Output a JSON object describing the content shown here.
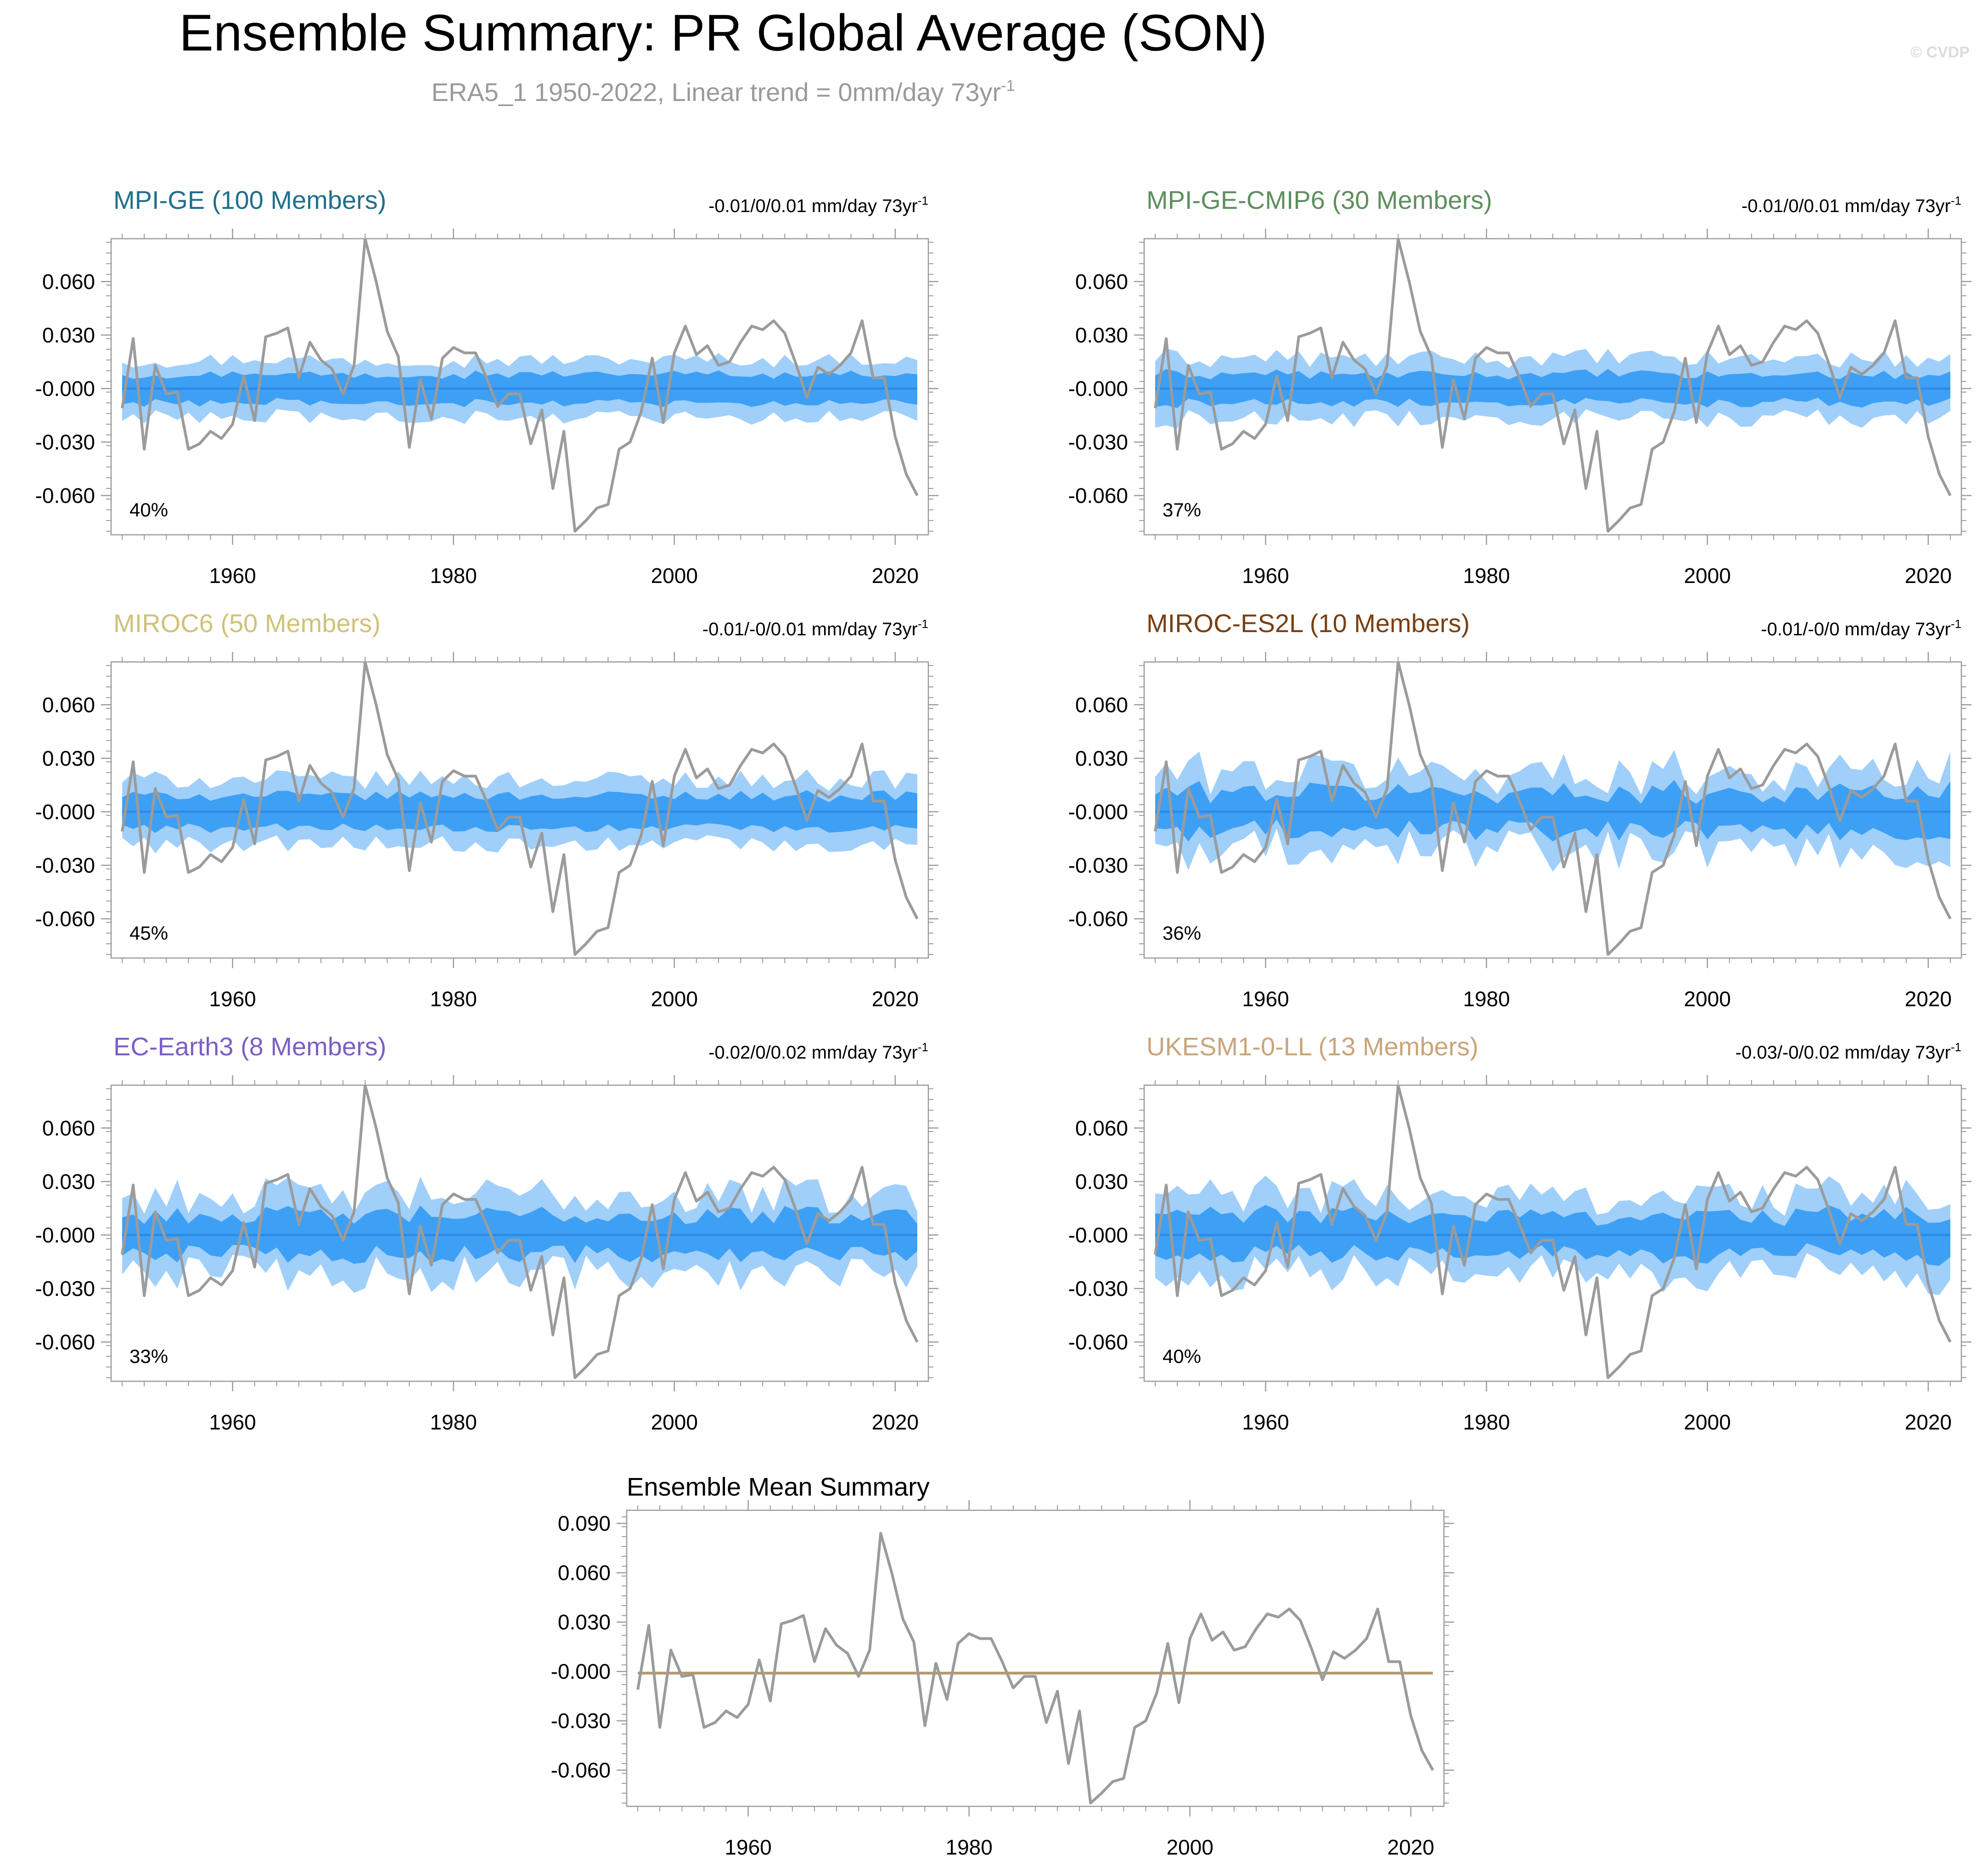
{
  "title": "Ensemble Summary: PR Global Average (SON)",
  "subtitle": "ERA5_1 1950-2022, Linear trend = 0mm/day 73yr",
  "subtitle_sup": "-1",
  "watermark": "© CVDP",
  "trend_units": "mm/day 73yr",
  "trend_sup": "-1",
  "colors": {
    "outer_band": "#a0cffa",
    "inner_band": "#3da0f5",
    "mean_line": "#2f8ae6",
    "obs_line": "#9b9b9b",
    "mean_summary_line": "#b49a6a"
  },
  "observed_series": [
    -0.011,
    0.028,
    -0.034,
    0.013,
    -0.003,
    -0.002,
    -0.034,
    -0.031,
    -0.024,
    -0.028,
    -0.02,
    0.007,
    -0.018,
    0.029,
    0.031,
    0.034,
    0.006,
    0.026,
    0.016,
    0.011,
    -0.003,
    0.013,
    0.084,
    0.06,
    0.032,
    0.018,
    -0.033,
    0.005,
    -0.017,
    0.017,
    0.023,
    0.02,
    0.02,
    0.006,
    -0.01,
    -0.003,
    -0.003,
    -0.031,
    -0.012,
    -0.056,
    -0.024,
    -0.08,
    -0.074,
    -0.067,
    -0.065,
    -0.034,
    -0.03,
    -0.013,
    0.017,
    -0.019,
    0.02,
    0.035,
    0.019,
    0.024,
    0.013,
    0.015,
    0.026,
    0.035,
    0.033,
    0.038,
    0.031,
    0.014,
    -0.005,
    0.012,
    0.008,
    0.013,
    0.02,
    0.038,
    0.006,
    0.006,
    -0.027,
    -0.048,
    -0.06
  ],
  "chart_data": [
    {
      "type": "area",
      "name": "MPI-GE (100 Members)",
      "title_color": "#1f6f8b",
      "trend_text": "-0.01/0/0.01",
      "percent_label": "40%",
      "x_range": [
        1950,
        2022
      ],
      "xlim": [
        1949,
        2023
      ],
      "ylim": [
        -0.082,
        0.084
      ],
      "xticks": [
        1960,
        1980,
        2000,
        2020
      ],
      "yticks": [
        0.06,
        0.03,
        0.0,
        -0.03,
        -0.06
      ],
      "ytick_labels": [
        "0.060",
        "0.030",
        "-0.000",
        "-0.030",
        "-0.060"
      ],
      "series": [
        {
          "name": "ensemble 10-90% range",
          "half_width": 0.016,
          "variability": 0.25
        },
        {
          "name": "ensemble 25-75% range",
          "half_width": 0.008,
          "variability": 0.25
        },
        {
          "name": "ensemble mean",
          "value": 0.0
        },
        {
          "name": "ERA5_1 observed",
          "values_ref": "observed_series"
        }
      ]
    },
    {
      "type": "area",
      "name": "MPI-GE-CMIP6 (30 Members)",
      "title_color": "#5e8f5e",
      "trend_text": "-0.01/0/0.01",
      "percent_label": "37%",
      "x_range": [
        1950,
        2022
      ],
      "xlim": [
        1949,
        2023
      ],
      "ylim": [
        -0.082,
        0.084
      ],
      "xticks": [
        1960,
        1980,
        2000,
        2020
      ],
      "yticks": [
        0.06,
        0.03,
        0.0,
        -0.03,
        -0.06
      ],
      "ytick_labels": [
        "0.060",
        "0.030",
        "-0.000",
        "-0.030",
        "-0.060"
      ],
      "series": [
        {
          "name": "ensemble 10-90% range",
          "half_width": 0.017,
          "variability": 0.3
        },
        {
          "name": "ensemble 25-75% range",
          "half_width": 0.008,
          "variability": 0.3
        },
        {
          "name": "ensemble mean",
          "value": 0.0
        },
        {
          "name": "ERA5_1 observed",
          "values_ref": "observed_series"
        }
      ]
    },
    {
      "type": "area",
      "name": "MIROC6 (50 Members)",
      "title_color": "#cfc27a",
      "trend_text": "-0.01/-0/0.01",
      "percent_label": "45%",
      "x_range": [
        1950,
        2022
      ],
      "xlim": [
        1949,
        2023
      ],
      "ylim": [
        -0.082,
        0.084
      ],
      "xticks": [
        1960,
        1980,
        2000,
        2020
      ],
      "yticks": [
        0.06,
        0.03,
        0.0,
        -0.03,
        -0.06
      ],
      "ytick_labels": [
        "0.060",
        "0.030",
        "-0.000",
        "-0.030",
        "-0.060"
      ],
      "series": [
        {
          "name": "ensemble 10-90% range",
          "half_width": 0.018,
          "variability": 0.3
        },
        {
          "name": "ensemble 25-75% range",
          "half_width": 0.009,
          "variability": 0.3
        },
        {
          "name": "ensemble mean",
          "value": 0.0
        },
        {
          "name": "ERA5_1 observed",
          "values_ref": "observed_series"
        }
      ]
    },
    {
      "type": "area",
      "name": "MIROC-ES2L (10 Members)",
      "title_color": "#7a3f12",
      "trend_text": "-0.01/-0/0",
      "percent_label": "36%",
      "x_range": [
        1950,
        2022
      ],
      "xlim": [
        1949,
        2023
      ],
      "ylim": [
        -0.082,
        0.084
      ],
      "xticks": [
        1960,
        1980,
        2000,
        2020
      ],
      "yticks": [
        0.06,
        0.03,
        0.0,
        -0.03,
        -0.06
      ],
      "ytick_labels": [
        "0.060",
        "0.030",
        "-0.000",
        "-0.030",
        "-0.060"
      ],
      "series": [
        {
          "name": "ensemble 10-90% range",
          "half_width": 0.022,
          "variability": 0.55
        },
        {
          "name": "ensemble 25-75% range",
          "half_width": 0.011,
          "variability": 0.55
        },
        {
          "name": "ensemble mean",
          "value": 0.0
        },
        {
          "name": "ERA5_1 observed",
          "values_ref": "observed_series"
        }
      ]
    },
    {
      "type": "area",
      "name": "EC-Earth3 (8 Members)",
      "title_color": "#7b5ec6",
      "trend_text": "-0.02/0/0.02",
      "percent_label": "33%",
      "x_range": [
        1950,
        2022
      ],
      "xlim": [
        1949,
        2023
      ],
      "ylim": [
        -0.082,
        0.084
      ],
      "xticks": [
        1960,
        1980,
        2000,
        2020
      ],
      "yticks": [
        0.06,
        0.03,
        0.0,
        -0.03,
        -0.06
      ],
      "ytick_labels": [
        "0.060",
        "0.030",
        "-0.000",
        "-0.030",
        "-0.060"
      ],
      "series": [
        {
          "name": "ensemble 10-90% range",
          "half_width": 0.022,
          "variability": 0.5
        },
        {
          "name": "ensemble 25-75% range",
          "half_width": 0.011,
          "variability": 0.5
        },
        {
          "name": "ensemble mean",
          "value": 0.0
        },
        {
          "name": "ERA5_1 observed",
          "values_ref": "observed_series"
        }
      ]
    },
    {
      "type": "area",
      "name": "UKESM1-0-LL (13 Members)",
      "title_color": "#c9a57a",
      "trend_text": "-0.03/-0/0.02",
      "percent_label": "40%",
      "x_range": [
        1950,
        2022
      ],
      "xlim": [
        1949,
        2023
      ],
      "ylim": [
        -0.082,
        0.084
      ],
      "xticks": [
        1960,
        1980,
        2000,
        2020
      ],
      "yticks": [
        0.06,
        0.03,
        0.0,
        -0.03,
        -0.06
      ],
      "ytick_labels": [
        "0.060",
        "0.030",
        "-0.000",
        "-0.030",
        "-0.060"
      ],
      "series": [
        {
          "name": "ensemble 10-90% range",
          "half_width": 0.022,
          "variability": 0.5
        },
        {
          "name": "ensemble 25-75% range",
          "half_width": 0.011,
          "variability": 0.5
        },
        {
          "name": "ensemble mean",
          "value": 0.0
        },
        {
          "name": "ERA5_1 observed",
          "values_ref": "observed_series"
        }
      ]
    },
    {
      "type": "line",
      "name": "Ensemble Mean Summary",
      "title_color": "#000000",
      "x_range": [
        1950,
        2022
      ],
      "xlim": [
        1949,
        2023
      ],
      "ylim": [
        -0.082,
        0.098
      ],
      "xticks": [
        1960,
        1980,
        2000,
        2020
      ],
      "yticks": [
        0.09,
        0.06,
        0.03,
        0.0,
        -0.03,
        -0.06
      ],
      "ytick_labels": [
        "0.090",
        "0.060",
        "0.030",
        "-0.000",
        "-0.030",
        "-0.060"
      ],
      "series": [
        {
          "name": "ensemble means",
          "value": -0.001
        },
        {
          "name": "ERA5_1 observed",
          "values_ref": "observed_series"
        }
      ]
    }
  ]
}
